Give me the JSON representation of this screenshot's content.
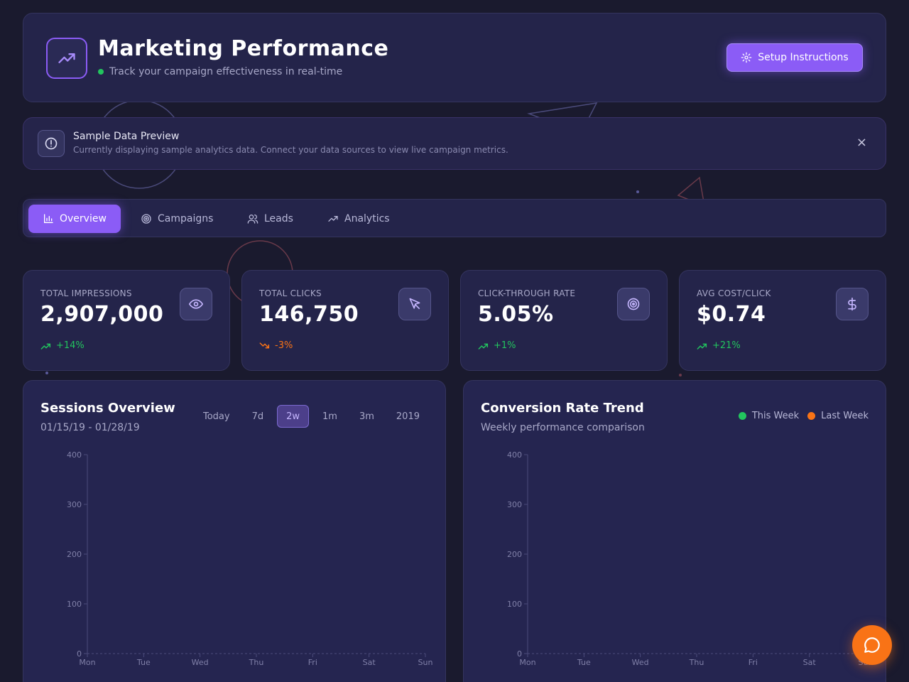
{
  "header": {
    "title": "Marketing Performance",
    "subtitle": "Track your campaign effectiveness in real-time",
    "setup_label": "Setup Instructions",
    "logo_icon": "trending-up-icon",
    "status_color": "#22c55e"
  },
  "notice": {
    "title": "Sample Data Preview",
    "text": "Currently displaying sample analytics data. Connect your data sources to view live campaign metrics.",
    "close_label": "×"
  },
  "tabs": [
    {
      "label": "Overview",
      "icon": "bar-chart-icon",
      "active": true
    },
    {
      "label": "Campaigns",
      "icon": "target-icon",
      "active": false
    },
    {
      "label": "Leads",
      "icon": "users-icon",
      "active": false
    },
    {
      "label": "Analytics",
      "icon": "trending-up-icon",
      "active": false
    }
  ],
  "stats": [
    {
      "label": "TOTAL IMPRESSIONS",
      "value": "2,907,000",
      "change": "+14%",
      "direction": "up",
      "icon": "eye-icon"
    },
    {
      "label": "TOTAL CLICKS",
      "value": "146,750",
      "change": "-3%",
      "direction": "down",
      "icon": "cursor-icon"
    },
    {
      "label": "CLICK-THROUGH RATE",
      "value": "5.05%",
      "change": "+1%",
      "direction": "up",
      "icon": "target-icon"
    },
    {
      "label": "AVG COST/CLICK",
      "value": "$0.74",
      "change": "+21%",
      "direction": "up",
      "icon": "dollar-icon"
    }
  ],
  "sessions": {
    "title": "Sessions Overview",
    "date_range": "01/15/19 - 01/28/19",
    "ranges": [
      {
        "label": "Today",
        "active": false
      },
      {
        "label": "7d",
        "active": false
      },
      {
        "label": "2w",
        "active": true
      },
      {
        "label": "1m",
        "active": false
      },
      {
        "label": "3m",
        "active": false
      },
      {
        "label": "2019",
        "active": false
      }
    ]
  },
  "conversion": {
    "title": "Conversion Rate Trend",
    "subtitle": "Weekly performance comparison",
    "legend": [
      {
        "label": "This Week",
        "color": "#22c55e"
      },
      {
        "label": "Last Week",
        "color": "#f97316"
      }
    ]
  },
  "chart_data": [
    {
      "type": "line",
      "title": "Sessions Overview",
      "categories": [
        "Mon",
        "Tue",
        "Wed",
        "Thu",
        "Fri",
        "Sat",
        "Sun"
      ],
      "yticks": [
        "400",
        "300",
        "200",
        "100",
        "0"
      ],
      "ylim": [
        0,
        400
      ],
      "series": [],
      "grid": false
    },
    {
      "type": "line",
      "title": "Conversion Rate Trend",
      "categories": [
        "Mon",
        "Tue",
        "Wed",
        "Thu",
        "Fri",
        "Sat",
        "Sun"
      ],
      "yticks": [
        "400",
        "300",
        "200",
        "100",
        "0"
      ],
      "ylim": [
        0,
        400
      ],
      "series": [],
      "grid": false
    }
  ],
  "colors": {
    "accent": "#8b5cf6",
    "positive": "#22c55e",
    "negative": "#f97316"
  }
}
